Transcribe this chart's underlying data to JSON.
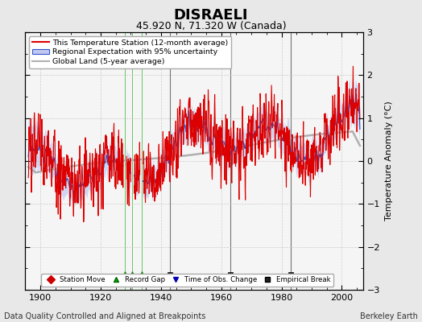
{
  "title": "DISRAELI",
  "subtitle": "45.920 N, 71.320 W (Canada)",
  "ylabel": "Temperature Anomaly (°C)",
  "xlabel_footer": "Data Quality Controlled and Aligned at Breakpoints",
  "footer_right": "Berkeley Earth",
  "ylim": [
    -3,
    3
  ],
  "xlim": [
    1895,
    2007
  ],
  "xticks": [
    1900,
    1920,
    1940,
    1960,
    1980,
    2000
  ],
  "yticks": [
    -3,
    -2,
    -1,
    0,
    1,
    2,
    3
  ],
  "bg_color": "#e8e8e8",
  "plot_bg_color": "#f5f5f5",
  "legend_entries": [
    "This Temperature Station (12-month average)",
    "Regional Expectation with 95% uncertainty",
    "Global Land (5-year average)"
  ],
  "marker_legend": [
    {
      "label": "Station Move",
      "color": "#cc0000",
      "marker": "D"
    },
    {
      "label": "Record Gap",
      "color": "#00aa00",
      "marker": "^"
    },
    {
      "label": "Time of Obs. Change",
      "color": "#0000cc",
      "marker": "v"
    },
    {
      "label": "Empirical Break",
      "color": "#333333",
      "marker": "s"
    }
  ],
  "record_gaps": [
    1928.0,
    1930.5,
    1933.5
  ],
  "empirical_breaks": [
    1943.0,
    1963.0,
    1983.0
  ],
  "seed": 17,
  "start_year": 1896,
  "end_year": 2006
}
